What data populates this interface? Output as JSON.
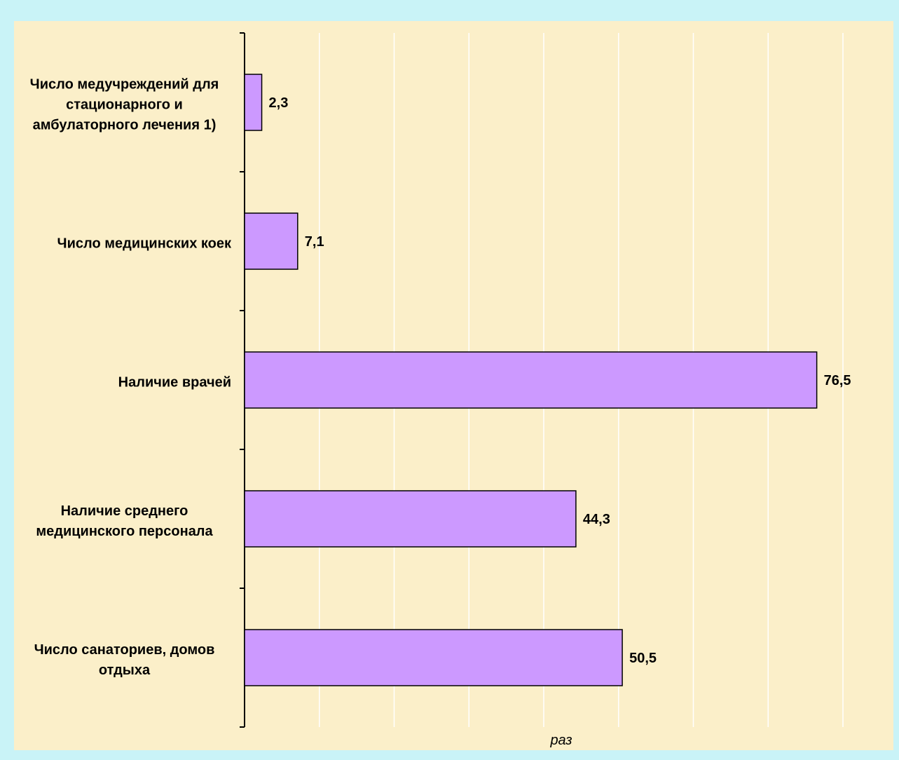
{
  "chart_data": {
    "type": "barh",
    "categories": [
      "Число медучреждений для стационарного и амбулаторного лечения 1)",
      "Число медицинских коек",
      "Наличие врачей",
      "Наличие среднего медицинского персонала",
      "Число санаториев, домов отдыха"
    ],
    "values": [
      2.3,
      7.1,
      76.5,
      44.3,
      50.5
    ],
    "value_labels": [
      "2,3",
      "7,1",
      "76,5",
      "44,3",
      "50,5"
    ],
    "color": "#cc99ff",
    "xlabel": "раз",
    "xlim": [
      0,
      80
    ],
    "xticks": [
      0,
      10,
      20,
      30,
      40,
      50,
      60,
      70,
      80
    ],
    "grid": true
  }
}
